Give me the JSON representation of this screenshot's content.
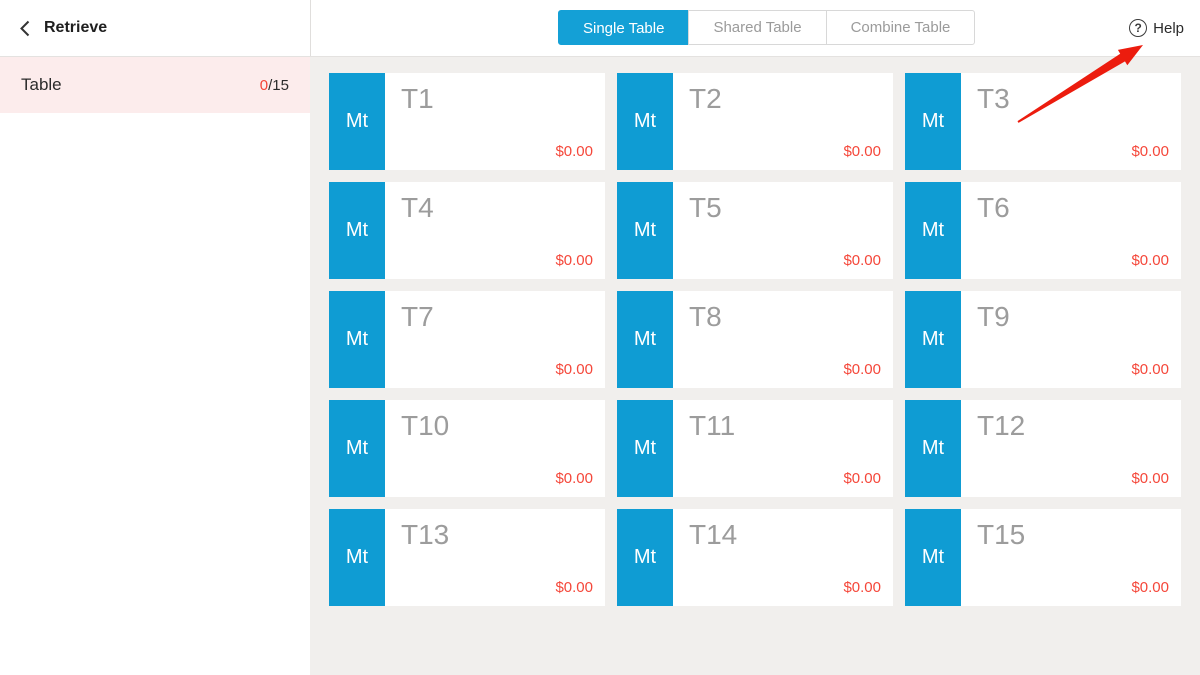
{
  "header": {
    "back_label": "Retrieve",
    "help_label": "Help",
    "tabs": [
      {
        "label": "Single Table",
        "active": true
      },
      {
        "label": "Shared Table",
        "active": false
      },
      {
        "label": "Combine Table",
        "active": false
      }
    ]
  },
  "sidebar": {
    "table_item": {
      "label": "Table",
      "count_current": "0",
      "count_total": "/15"
    }
  },
  "tables": [
    {
      "badge": "Mt",
      "name": "T1",
      "amount": "$0.00"
    },
    {
      "badge": "Mt",
      "name": "T2",
      "amount": "$0.00"
    },
    {
      "badge": "Mt",
      "name": "T3",
      "amount": "$0.00"
    },
    {
      "badge": "Mt",
      "name": "T4",
      "amount": "$0.00"
    },
    {
      "badge": "Mt",
      "name": "T5",
      "amount": "$0.00"
    },
    {
      "badge": "Mt",
      "name": "T6",
      "amount": "$0.00"
    },
    {
      "badge": "Mt",
      "name": "T7",
      "amount": "$0.00"
    },
    {
      "badge": "Mt",
      "name": "T8",
      "amount": "$0.00"
    },
    {
      "badge": "Mt",
      "name": "T9",
      "amount": "$0.00"
    },
    {
      "badge": "Mt",
      "name": "T10",
      "amount": "$0.00"
    },
    {
      "badge": "Mt",
      "name": "T11",
      "amount": "$0.00"
    },
    {
      "badge": "Mt",
      "name": "T12",
      "amount": "$0.00"
    },
    {
      "badge": "Mt",
      "name": "T13",
      "amount": "$0.00"
    },
    {
      "badge": "Mt",
      "name": "T14",
      "amount": "$0.00"
    },
    {
      "badge": "Mt",
      "name": "T15",
      "amount": "$0.00"
    }
  ],
  "icons": {
    "back": "chevron-left-icon",
    "help": "question-circle-icon",
    "help_glyph": "?"
  },
  "colors": {
    "accent_cyan": "#14a0d6",
    "badge_cyan": "#0f9cd3",
    "amount_red": "#f5473a",
    "count_red": "#f44336",
    "arrow_red": "#ec1c0e",
    "sidebar_active_bg": "#fcecec",
    "main_bg": "#f1efed",
    "muted_text": "#9c9c9c"
  }
}
